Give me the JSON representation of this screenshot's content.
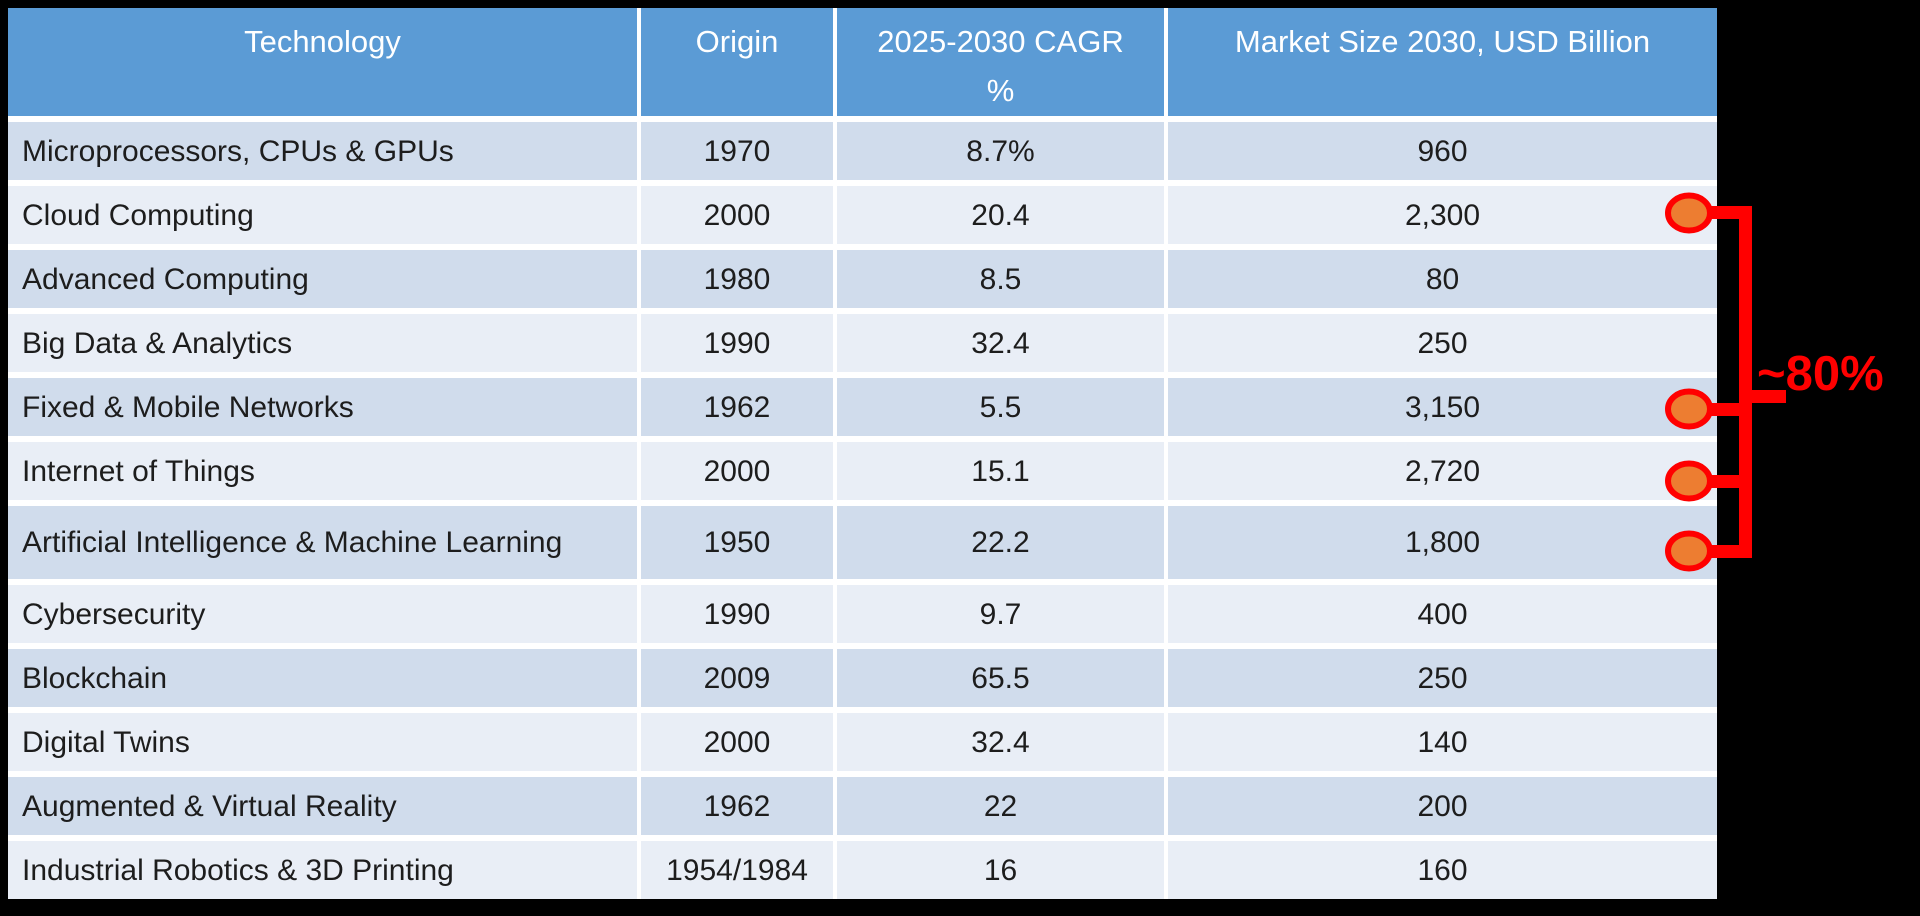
{
  "table": {
    "header": {
      "technology": "Technology",
      "origin": "Origin",
      "cagr": "2025-2030 CAGR\n%",
      "market": "Market Size 2030, USD Billion"
    },
    "rows": [
      {
        "technology": "Microprocessors, CPUs & GPUs",
        "origin": "1970",
        "cagr": "8.7%",
        "market": "960",
        "highlighted": false
      },
      {
        "technology": "Cloud Computing",
        "origin": "2000",
        "cagr": "20.4",
        "market": "2,300",
        "highlighted": true
      },
      {
        "technology": "Advanced Computing",
        "origin": "1980",
        "cagr": "8.5",
        "market": "80",
        "highlighted": false
      },
      {
        "technology": "Big Data & Analytics",
        "origin": "1990",
        "cagr": "32.4",
        "market": "250",
        "highlighted": false
      },
      {
        "technology": "Fixed & Mobile Networks",
        "origin": "1962",
        "cagr": "5.5",
        "market": "3,150",
        "highlighted": true
      },
      {
        "technology": "Internet of Things",
        "origin": "2000",
        "cagr": "15.1",
        "market": "2,720",
        "highlighted": true
      },
      {
        "technology": "Artificial Intelligence & Machine Learning",
        "origin": "1950",
        "cagr": "22.2",
        "market": "1,800",
        "highlighted": true
      },
      {
        "technology": "Cybersecurity",
        "origin": "1990",
        "cagr": "9.7",
        "market": "400",
        "highlighted": false
      },
      {
        "technology": "Blockchain",
        "origin": "2009",
        "cagr": "65.5",
        "market": "250",
        "highlighted": false
      },
      {
        "technology": "Digital Twins",
        "origin": "2000",
        "cagr": "32.4",
        "market": "140",
        "highlighted": false
      },
      {
        "technology": "Augmented & Virtual Reality",
        "origin": "1962",
        "cagr": "22",
        "market": "200",
        "highlighted": false
      },
      {
        "technology": "Industrial Robotics & 3D Printing",
        "origin": "1954/1984",
        "cagr": "16",
        "market": "160",
        "highlighted": false
      }
    ]
  },
  "annotation": {
    "label": "~80%",
    "highlighted_technologies": [
      "Cloud Computing",
      "Fixed & Mobile Networks",
      "Internet of Things",
      "Artificial Intelligence & Machine Learning"
    ],
    "marker_color": "#ED7D31",
    "line_color": "#FF0000",
    "label_color": "#FF0000"
  },
  "colors": {
    "background": "#000000",
    "header_bg": "#5B9BD5",
    "header_text": "#FFFFFF",
    "row_dark": "#D0DCEC",
    "row_light": "#E9EEF6",
    "separator": "#FFFFFF",
    "cell_text": "#1D1D1D"
  },
  "chart_data": {
    "type": "table",
    "title": "",
    "columns": [
      "Technology",
      "Origin",
      "2025-2030 CAGR %",
      "Market Size 2030, USD Billion"
    ],
    "rows": [
      [
        "Microprocessors, CPUs & GPUs",
        "1970",
        "8.7%",
        "960"
      ],
      [
        "Cloud Computing",
        "2000",
        "20.4",
        "2,300"
      ],
      [
        "Advanced Computing",
        "1980",
        "8.5",
        "80"
      ],
      [
        "Big Data & Analytics",
        "1990",
        "32.4",
        "250"
      ],
      [
        "Fixed & Mobile Networks",
        "1962",
        "5.5",
        "3,150"
      ],
      [
        "Internet of Things",
        "2000",
        "15.1",
        "2,720"
      ],
      [
        "Artificial Intelligence & Machine Learning",
        "1950",
        "22.2",
        "1,800"
      ],
      [
        "Cybersecurity",
        "1990",
        "9.7",
        "400"
      ],
      [
        "Blockchain",
        "2009",
        "65.5",
        "250"
      ],
      [
        "Digital Twins",
        "2000",
        "32.4",
        "140"
      ],
      [
        "Augmented & Virtual Reality",
        "1962",
        "22",
        "200"
      ],
      [
        "Industrial Robotics & 3D Printing",
        "1954/1984",
        "16",
        "160"
      ]
    ],
    "annotation": {
      "label": "~80%",
      "applies_to_market_values": [
        "2,300",
        "3,150",
        "2,720",
        "1,800"
      ]
    }
  }
}
